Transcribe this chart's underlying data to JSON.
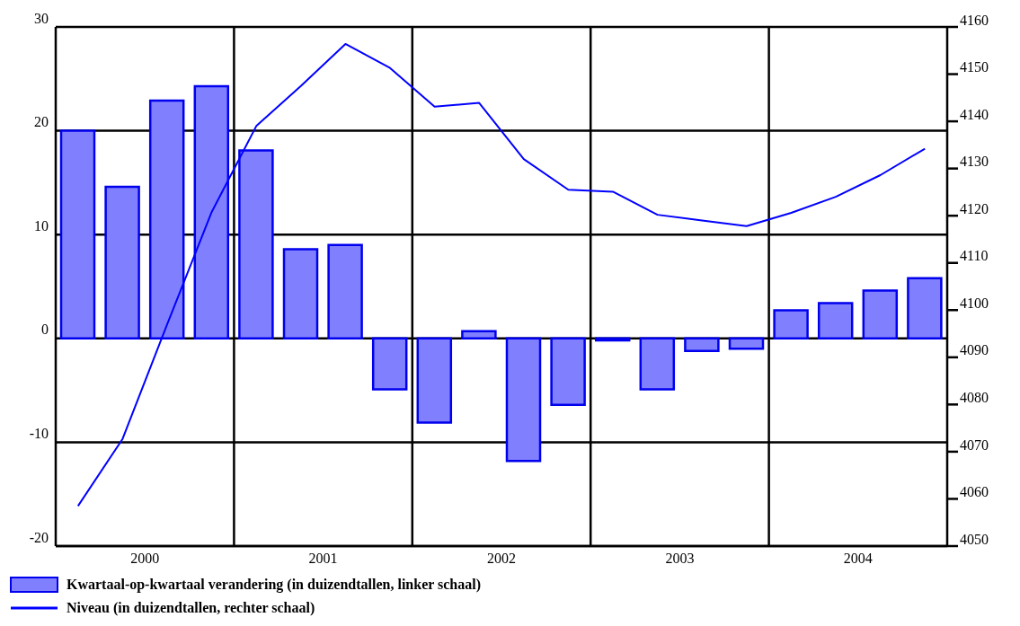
{
  "chart_data": {
    "type": "bar",
    "x": [
      2000.125,
      2000.375,
      2000.625,
      2000.875,
      2001.125,
      2001.375,
      2001.625,
      2001.875,
      2002.125,
      2002.375,
      2002.625,
      2002.875,
      2003.125,
      2003.375,
      2003.625,
      2003.875,
      2004.125,
      2004.375,
      2004.625,
      2004.875
    ],
    "xlim": [
      2000,
      2005
    ],
    "xticks": [
      {
        "value": 2000.5,
        "label": "2000"
      },
      {
        "value": 2001,
        "label": null
      },
      {
        "value": 2001.5,
        "label": "2001"
      },
      {
        "value": 2002,
        "label": null
      },
      {
        "value": 2002.5,
        "label": "2002"
      },
      {
        "value": 2003,
        "label": null
      },
      {
        "value": 2003.5,
        "label": "2003"
      },
      {
        "value": 2004,
        "label": null
      },
      {
        "value": 2004.5,
        "label": "2004"
      }
    ],
    "series": [
      {
        "name": "Kwartaal-op-kwartaal verandering (in duizendtallen, linker schaal)",
        "color": "#8080ff",
        "values": [
          20.0,
          14.6,
          22.9,
          24.3,
          18.1,
          8.6,
          9.0,
          -4.9,
          -8.1,
          0.7,
          -11.8,
          -6.4,
          -0.2,
          -4.9,
          -1.2,
          -1.0,
          2.7,
          3.4,
          4.6,
          5.8
        ]
      },
      {
        "name": "Niveau (in duizendtallen, rechter schaal)",
        "type": "line",
        "axis": "y2",
        "color": "#0000ff",
        "values": [
          4058.5,
          4072.7,
          4097,
          4120.8,
          4139.0,
          4147.5,
          4156.4,
          4151.3,
          4143.1,
          4143.9,
          4132,
          4125.5,
          4125.1,
          4120.2,
          4119,
          4117.8,
          4120.6,
          4124,
          4128.6,
          4134.2
        ]
      }
    ],
    "ylim": [
      -20,
      30
    ],
    "yticks": [
      -20,
      -10,
      0,
      10,
      20,
      30
    ],
    "y2lim": [
      4050,
      4160
    ],
    "y2ticks": [
      4050,
      4060,
      4070,
      4080,
      4090,
      4100,
      4110,
      4120,
      4130,
      4140,
      4150,
      4160
    ],
    "grid": true,
    "legend": "bottom",
    "marker": "none",
    "line_style": "solid"
  }
}
